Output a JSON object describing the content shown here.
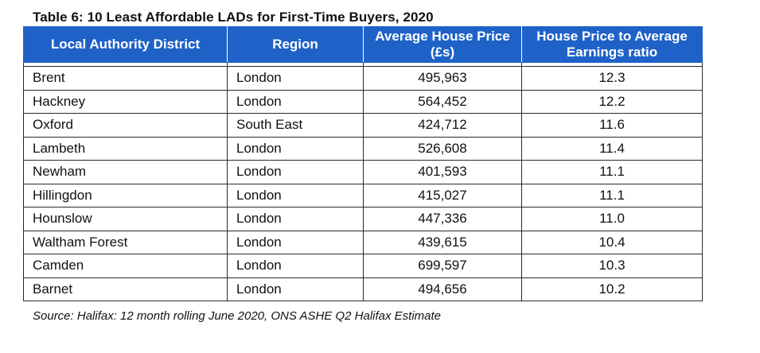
{
  "title": "Table 6: 10 Least Affordable LADs for First-Time Buyers, 2020",
  "headers": [
    "Local Authority District",
    "Region",
    "Average House Price (£s)",
    "House Price to Average Earnings ratio"
  ],
  "rows": [
    {
      "district": "Brent",
      "region": "London",
      "price": "495,963",
      "ratio": "12.3"
    },
    {
      "district": "Hackney",
      "region": "London",
      "price": "564,452",
      "ratio": "12.2"
    },
    {
      "district": "Oxford",
      "region": "South East",
      "price": "424,712",
      "ratio": "11.6"
    },
    {
      "district": "Lambeth",
      "region": "London",
      "price": "526,608",
      "ratio": "11.4"
    },
    {
      "district": "Newham",
      "region": "London",
      "price": "401,593",
      "ratio": "11.1"
    },
    {
      "district": "Hillingdon",
      "region": "London",
      "price": "415,027",
      "ratio": "11.1"
    },
    {
      "district": "Hounslow",
      "region": "London",
      "price": "447,336",
      "ratio": "11.0"
    },
    {
      "district": "Waltham Forest",
      "region": "London",
      "price": "439,615",
      "ratio": "10.4"
    },
    {
      "district": "Camden",
      "region": "London",
      "price": "699,597",
      "ratio": "10.3"
    },
    {
      "district": "Barnet",
      "region": "London",
      "price": "494,656",
      "ratio": "10.2"
    }
  ],
  "source": "Source: Halifax: 12 month rolling June 2020, ONS ASHE Q2 Halifax Estimate",
  "colors": {
    "header_bg": "#1f62c7",
    "header_text": "#ffffff",
    "border": "#2a2a2a"
  }
}
